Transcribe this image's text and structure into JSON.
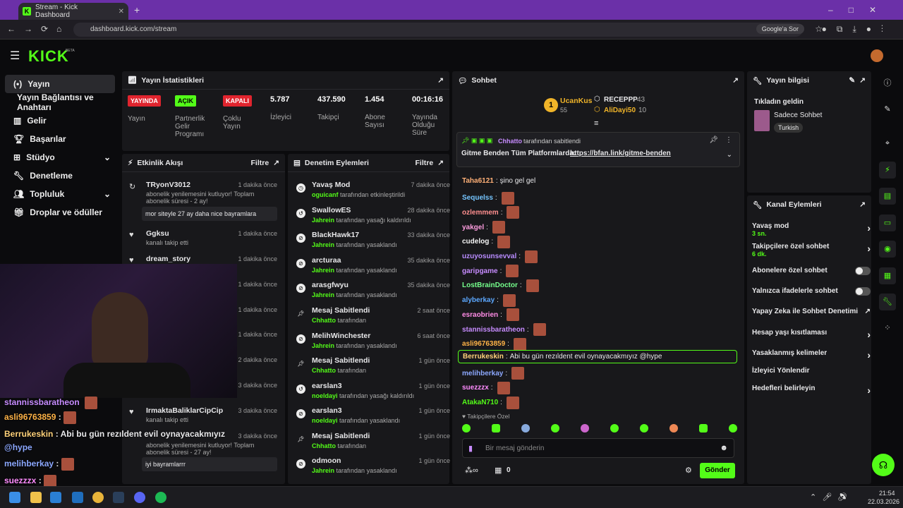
{
  "browser": {
    "tab_title": "Stream - Kick Dashboard",
    "url": "dashboard.kick.com/stream",
    "search_chip": "Google'a Sor"
  },
  "brand": {
    "logo": "KICK",
    "beta": "BETA"
  },
  "sidebar": {
    "items": [
      {
        "label": "Yayın",
        "icon": "broadcast-icon"
      },
      {
        "label": "Yayın Bağlantısı ve Anahtarı",
        "icon": ""
      },
      {
        "label": "Gelir",
        "icon": "chart-icon"
      },
      {
        "label": "Başarılar",
        "icon": "trophy-icon"
      },
      {
        "label": "Stüdyo",
        "icon": "studio-icon"
      },
      {
        "label": "Denetleme",
        "icon": "wrench-icon"
      },
      {
        "label": "Topluluk",
        "icon": "community-icon"
      },
      {
        "label": "Droplar ve ödüller",
        "icon": "gift-icon"
      }
    ]
  },
  "stats": {
    "title": "Yayın İstatistikleri",
    "badges": [
      {
        "text": "YAYINDA",
        "label": "Yayın"
      },
      {
        "text": "AÇIK",
        "label": "Partnerlik Gelir Programı"
      },
      {
        "text": "KAPALI",
        "label": "Çoklu Yayın"
      }
    ],
    "numbers": [
      {
        "value": "5.787",
        "label": "İzleyici"
      },
      {
        "value": "437.590",
        "label": "Takipçi"
      },
      {
        "value": "1.454",
        "label": "Abone Sayısı"
      },
      {
        "value": "00:16:16",
        "label": "Yayında Olduğu Süre"
      }
    ]
  },
  "activity": {
    "title": "Etkinlik Akışı",
    "filter": "Filtre",
    "items": [
      {
        "name": "TRyonV3012",
        "time": "1 dakika önce",
        "sub": "abonelik yenilemesini kutluyor! Toplam abonelik süresi - 2 ay!",
        "msg": "mor siteyle 27 ay daha nice bayramlara"
      },
      {
        "name": "Ggksu",
        "time": "1 dakika önce",
        "sub": "kanalı takip etti"
      },
      {
        "name": "dream_story",
        "time": "1 dakika önce",
        "sub": ""
      },
      {
        "name": "",
        "time": "1 dakika önce",
        "sub": ""
      },
      {
        "name": "",
        "time": "1 dakika önce",
        "sub": ""
      },
      {
        "name": "",
        "time": "1 dakika önce",
        "sub": ""
      },
      {
        "name": "",
        "time": "2 dakika önce",
        "sub": ""
      },
      {
        "name": "",
        "time": "3 dakika önce",
        "sub": ""
      },
      {
        "name": "IrmaktaBaliklarCipCip",
        "time": "3 dakika önce",
        "sub": "kanalı takip etti"
      },
      {
        "name": "",
        "time": "3 dakika önce",
        "sub": "abonelik yenilemesini kutluyor! Toplam abonelik süresi - 27 ay!",
        "msg": "iyi bayramlarrr"
      }
    ]
  },
  "moderation": {
    "title": "Denetim Eylemleri",
    "filter": "Filtre",
    "items": [
      {
        "name": "Yavaş Mod",
        "who": "oguicanf",
        "action": "tarafından etkinleştirildi",
        "time": "7 dakika önce"
      },
      {
        "name": "SwallowES",
        "who": "Jahrein",
        "action": "tarafından yasağı kaldırıldı",
        "time": "28 dakika önce"
      },
      {
        "name": "BlackHawk17",
        "who": "Jahrein",
        "action": "tarafından yasaklandı",
        "time": "33 dakika önce"
      },
      {
        "name": "arcturaa",
        "who": "Jahrein",
        "action": "tarafından yasaklandı",
        "time": "35 dakika önce"
      },
      {
        "name": "arasgfwyu",
        "who": "Jahrein",
        "action": "tarafından yasaklandı",
        "time": "35 dakika önce"
      },
      {
        "name": "Mesaj Sabitlendi",
        "who": "Chhatto",
        "action": "tarafından",
        "time": "2 saat önce"
      },
      {
        "name": "MelihWinchester",
        "who": "Jahrein",
        "action": "tarafından yasaklandı",
        "time": "6 saat önce"
      },
      {
        "name": "Mesaj Sabitlendi",
        "who": "Chhatto",
        "action": "tarafından",
        "time": "1 gün önce"
      },
      {
        "name": "earslan3",
        "who": "noeldayi",
        "action": "tarafından yasağı kaldırıldı",
        "time": "1 gün önce"
      },
      {
        "name": "earslan3",
        "who": "noeldayi",
        "action": "tarafından yasaklandı",
        "time": "1 gün önce"
      },
      {
        "name": "Mesaj Sabitlendi",
        "who": "Chhatto",
        "action": "tarafından",
        "time": "1 gün önce"
      },
      {
        "name": "odmoon",
        "who": "Jahrein",
        "action": "tarafından yasaklandı",
        "time": "1 gün önce"
      }
    ]
  },
  "chat": {
    "title": "Sohbet",
    "leaders": {
      "first": {
        "name": "UcanKus",
        "count": "55"
      },
      "second": {
        "name": "RECEPPP",
        "count": "43"
      },
      "third": {
        "name": "AliDayi50",
        "count": "10"
      }
    },
    "pinned": {
      "by": "Chhatto",
      "by_suffix": "tarafından sabitlendi",
      "text": "Gitme Benden Tüm Platformlarda:",
      "link": "https://bfan.link/gitme-benden"
    },
    "messages": [
      {
        "user": "Taha6121",
        "text": "şino gel gel",
        "color": "#ffb077"
      },
      {
        "user": "Sequelss",
        "text": "",
        "color": "#75c5ff"
      },
      {
        "user": "ozlemmem",
        "text": "",
        "color": "#ff8f8f"
      },
      {
        "user": "yakgel",
        "text": "",
        "color": "#ff9ee0"
      },
      {
        "user": "cudelog",
        "text": "",
        "color": "#f5f5f5"
      },
      {
        "user": "uzuyosunsevval",
        "text": "",
        "color": "#b98cff"
      },
      {
        "user": "garipgame",
        "text": "",
        "color": "#c78cff"
      },
      {
        "user": "LostBrainDoctor",
        "text": "",
        "color": "#75ff8c"
      },
      {
        "user": "alyberkay",
        "text": "",
        "color": "#5ca8ff"
      },
      {
        "user": "esraobrien",
        "text": "",
        "color": "#ff8ce6"
      },
      {
        "user": "stannissbaratheon",
        "text": "",
        "color": "#c78cff"
      },
      {
        "user": "asli96763859",
        "text": "",
        "color": "#ffb347"
      },
      {
        "user": "Berrukeskin",
        "text": "Abi bu gün rezıldent evil oynayacakmıyız @hype",
        "color": "#ffd27a"
      },
      {
        "user": "melihberkay",
        "text": "",
        "color": "#8ca8ff"
      },
      {
        "user": "suezzzx",
        "text": "",
        "color": "#ff8cff"
      },
      {
        "user": "AtakaN710",
        "text": "",
        "color": "#53fc18"
      }
    ],
    "follower_only": "Takipçilere Özel",
    "placeholder": "Bir mesaj gönderin",
    "points": "0",
    "send": "Gönder"
  },
  "streaminfo": {
    "title": "Yayın bilgisi",
    "stream_title": "Tıkladın geldin",
    "category": "Sadece Sohbet",
    "tag": "Turkish"
  },
  "channel_actions": {
    "title": "Kanal Eylemleri",
    "items": [
      {
        "label": "Yavaş mod",
        "sub": "3 sn.",
        "type": "chevron"
      },
      {
        "label": "Takipçilere özel sohbet",
        "sub": "6 dk.",
        "type": "chevron"
      },
      {
        "label": "Abonelere özel sohbet",
        "sub": "",
        "type": "toggle"
      },
      {
        "label": "Yalnızca ifadelerle sohbet",
        "sub": "",
        "type": "toggle"
      },
      {
        "label": "Yapay Zeka ile Sohbet Denetimi",
        "sub": "",
        "type": "external"
      },
      {
        "label": "Hesap yaşı kısıtlaması",
        "sub": "",
        "type": "chevron"
      },
      {
        "label": "Yasaklanmış kelimeler",
        "sub": "",
        "type": "chevron"
      },
      {
        "label": "İzleyici Yönlendir",
        "sub": "",
        "type": "none"
      },
      {
        "label": "Hedefleri belirleyin",
        "sub": "",
        "type": "chevron"
      }
    ]
  },
  "overlay": {
    "lines": [
      {
        "user": "stannissbaratheon",
        "text": "",
        "color": "#c78cff"
      },
      {
        "user": "asli96763859",
        "text": "",
        "color": "#ffb347"
      },
      {
        "user": "Berrukeskin",
        "text": "Abi bu gün rezıldent evil oynayacakmıyız",
        "color": "#ffd27a"
      },
      {
        "user": "",
        "text": "@hype",
        "color": "#8ca8ff"
      },
      {
        "user": "melihberkay",
        "text": "",
        "color": "#8ca8ff"
      },
      {
        "user": "suezzzx",
        "text": "",
        "color": "#ff8cff"
      }
    ]
  },
  "taskbar": {
    "time": "21:54",
    "date": "22.03.2026"
  },
  "colors": {
    "accent": "#53fc18",
    "live": "#e0242e",
    "panel": "#18181b",
    "bg": "#0b0b0d"
  }
}
